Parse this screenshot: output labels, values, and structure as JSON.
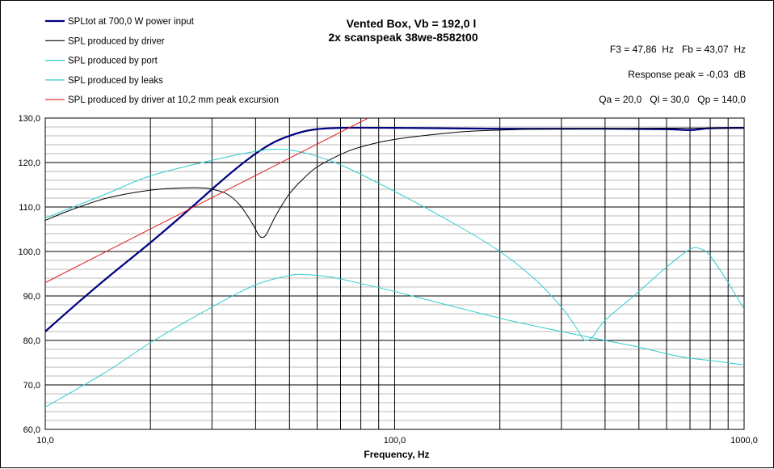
{
  "chart_data": {
    "type": "line",
    "title": "Vented Box, Vb = 192,0 l",
    "subtitle": "2x scanspeak 38we-8582t00",
    "xlabel": "Frequency, Hz",
    "ylabel": "",
    "x_scale": "log",
    "xlim": [
      10,
      1000
    ],
    "ylim": [
      60,
      130
    ],
    "grid": true,
    "legend_position": "top-left",
    "x_tick_labels": [
      {
        "value": 10,
        "label": "10,0"
      },
      {
        "value": 100,
        "label": "100,0"
      },
      {
        "value": 1000,
        "label": "1000,0"
      }
    ],
    "y_tick_labels": [
      {
        "value": 60,
        "label": "60,0"
      },
      {
        "value": 70,
        "label": "70,0"
      },
      {
        "value": 80,
        "label": "80,0"
      },
      {
        "value": 90,
        "label": "90,0"
      },
      {
        "value": 100,
        "label": "100,0"
      },
      {
        "value": 110,
        "label": "110,0"
      },
      {
        "value": 120,
        "label": "120,0"
      },
      {
        "value": 130,
        "label": "130,0"
      }
    ],
    "annotations": [
      "F3 = 47,86  Hz   Fb = 43,07  Hz",
      "Response peak = -0,03  dB",
      "Qa = 20,0   Ql = 30,0   Qp = 140,0"
    ],
    "series": [
      {
        "name": "SPLtot at 700,0 W power input",
        "color": "#000080",
        "width": 2.2,
        "points": [
          [
            10,
            82
          ],
          [
            12,
            87.5
          ],
          [
            15,
            94
          ],
          [
            20,
            102
          ],
          [
            25,
            108.5
          ],
          [
            30,
            114
          ],
          [
            35,
            118.5
          ],
          [
            40,
            122
          ],
          [
            45,
            124.5
          ],
          [
            50,
            126
          ],
          [
            55,
            127
          ],
          [
            60,
            127.5
          ],
          [
            70,
            127.8
          ],
          [
            100,
            127.8
          ],
          [
            200,
            127.6
          ],
          [
            400,
            127.6
          ],
          [
            600,
            127.5
          ],
          [
            700,
            127.3
          ],
          [
            800,
            127.7
          ],
          [
            1000,
            127.8
          ]
        ]
      },
      {
        "name": "SPL produced by driver",
        "color": "#000000",
        "width": 1,
        "points": [
          [
            10,
            107
          ],
          [
            12,
            109.5
          ],
          [
            15,
            112
          ],
          [
            20,
            113.8
          ],
          [
            25,
            114.3
          ],
          [
            28,
            114.3
          ],
          [
            30,
            114
          ],
          [
            33,
            113
          ],
          [
            36,
            110.5
          ],
          [
            39,
            106.5
          ],
          [
            41,
            103.5
          ],
          [
            42.5,
            103.4
          ],
          [
            44,
            105.5
          ],
          [
            46,
            108.5
          ],
          [
            50,
            113
          ],
          [
            55,
            116.5
          ],
          [
            60,
            119
          ],
          [
            70,
            121.8
          ],
          [
            80,
            123.5
          ],
          [
            100,
            125.2
          ],
          [
            150,
            126.8
          ],
          [
            200,
            127.3
          ],
          [
            300,
            127.6
          ],
          [
            500,
            127.7
          ],
          [
            1000,
            127.8
          ]
        ]
      },
      {
        "name": "SPL produced by port",
        "color": "#33cccc",
        "width": 1,
        "points": [
          [
            10,
            107.5
          ],
          [
            15,
            113
          ],
          [
            20,
            117
          ],
          [
            30,
            120.5
          ],
          [
            40,
            122.5
          ],
          [
            47,
            123
          ],
          [
            55,
            122.2
          ],
          [
            70,
            119.5
          ],
          [
            100,
            113.5
          ],
          [
            150,
            106
          ],
          [
            200,
            100
          ],
          [
            250,
            94
          ],
          [
            300,
            87.5
          ],
          [
            330,
            83
          ],
          [
            350,
            80
          ],
          [
            370,
            81
          ],
          [
            400,
            84.5
          ],
          [
            500,
            91
          ],
          [
            600,
            96.5
          ],
          [
            700,
            100.5
          ],
          [
            750,
            100.6
          ],
          [
            800,
            99
          ],
          [
            900,
            93
          ],
          [
            1000,
            87
          ]
        ]
      },
      {
        "name": "SPL produced by leaks",
        "color": "#33cccc",
        "width": 1,
        "points": [
          [
            10,
            65
          ],
          [
            15,
            73
          ],
          [
            20,
            79.5
          ],
          [
            30,
            87.5
          ],
          [
            40,
            92.5
          ],
          [
            50,
            94.6
          ],
          [
            55,
            94.8
          ],
          [
            65,
            94.3
          ],
          [
            80,
            92.8
          ],
          [
            100,
            91
          ],
          [
            200,
            85
          ],
          [
            300,
            82
          ],
          [
            400,
            80
          ],
          [
            500,
            78.5
          ],
          [
            600,
            77
          ],
          [
            700,
            76
          ],
          [
            800,
            75.5
          ],
          [
            1000,
            74.5
          ]
        ]
      },
      {
        "name": "SPL produced by driver at 10,2 mm peak excursion",
        "color": "#e02020",
        "width": 1,
        "points": [
          [
            10,
            93
          ],
          [
            84,
            130
          ]
        ]
      }
    ]
  }
}
